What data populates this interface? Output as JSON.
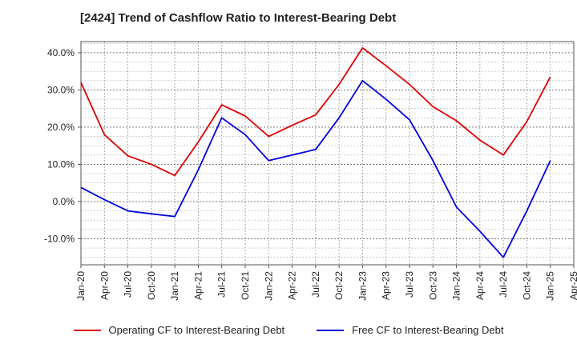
{
  "chart_data": {
    "type": "line",
    "title": "[2424]  Trend of Cashflow Ratio to Interest-Bearing Debt",
    "xlabel": "",
    "ylabel": "",
    "x": [
      "Jan-20",
      "Apr-20",
      "Jul-20",
      "Oct-20",
      "Jan-21",
      "Apr-21",
      "Jul-21",
      "Oct-21",
      "Jan-22",
      "Apr-22",
      "Jul-22",
      "Oct-22",
      "Jan-23",
      "Apr-23",
      "Jul-23",
      "Oct-23",
      "Jan-24",
      "Apr-24",
      "Jul-24",
      "Oct-24",
      "Jan-25",
      "Apr-25"
    ],
    "x_tick_labels": [
      "Jan-20",
      "Apr-20",
      "Jul-20",
      "Oct-20",
      "Jan-21",
      "Apr-21",
      "Jul-21",
      "Oct-21",
      "Jan-22",
      "Apr-22",
      "Jul-22",
      "Oct-22",
      "Jan-23",
      "Apr-23",
      "Jul-23",
      "Oct-23",
      "Jan-24",
      "Apr-24",
      "Jul-24",
      "Oct-24",
      "Jan-25",
      "Apr-25"
    ],
    "y_tick_labels": [
      "-10.0%",
      "0.0%",
      "10.0%",
      "20.0%",
      "30.0%",
      "40.0%"
    ],
    "y_ticks": [
      -10,
      0,
      10,
      20,
      30,
      40
    ],
    "ylim": [
      -17,
      43
    ],
    "grid": true,
    "legend_position": "bottom",
    "series": [
      {
        "name": "Operating CF to Interest-Bearing Debt",
        "color": "#e00000",
        "values": [
          32.0,
          18.0,
          12.3,
          10.0,
          7.0,
          16.0,
          26.0,
          23.0,
          17.5,
          20.5,
          23.3,
          31.5,
          41.3,
          36.5,
          31.5,
          25.5,
          21.7,
          16.5,
          12.5,
          21.5,
          33.5,
          null
        ]
      },
      {
        "name": "Free CF to Interest-Bearing Debt",
        "color": "#0000e0",
        "values": [
          3.8,
          0.5,
          -2.5,
          -3.3,
          -4.0,
          8.5,
          22.5,
          18.0,
          11.0,
          12.5,
          14.0,
          22.5,
          32.5,
          27.5,
          22.0,
          11.0,
          -1.5,
          -8.0,
          -15.0,
          -2.5,
          11.0,
          null
        ]
      }
    ]
  }
}
